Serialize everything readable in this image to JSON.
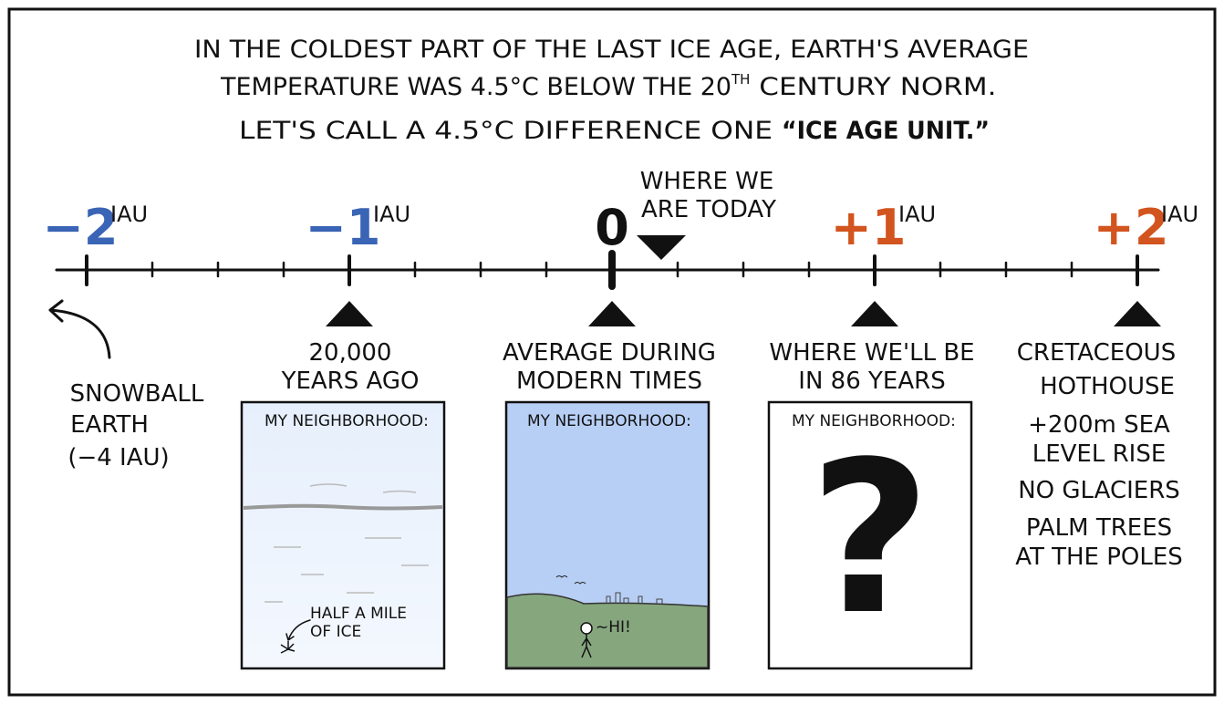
{
  "header": {
    "line1": "IN THE COLDEST PART OF THE LAST ICE AGE, EARTH'S AVERAGE",
    "line2a": "TEMPERATURE WAS 4.5°C BELOW THE 20",
    "line2b": "TH",
    "line2c": " CENTURY NORM.",
    "line3a": "LET'S CALL A 4.5°C DIFFERENCE ONE ",
    "line3b": "“ICE AGE UNIT.”"
  },
  "scale": {
    "labels": [
      {
        "text": "−2",
        "unit": "IAU"
      },
      {
        "text": "−1",
        "unit": "IAU"
      },
      {
        "text": "0"
      },
      {
        "text": "+1",
        "unit": "IAU"
      },
      {
        "text": "+2",
        "unit": "IAU"
      }
    ],
    "today": [
      "WHERE WE",
      "ARE TODAY"
    ]
  },
  "annotations": {
    "snowball": [
      "SNOWBALL",
      "EARTH",
      "(−4 IAU)"
    ],
    "past": [
      "20,000",
      "YEARS AGO"
    ],
    "modern": [
      "AVERAGE DURING",
      "MODERN TIMES"
    ],
    "future": [
      "WHERE WE'LL BE",
      "IN 86 YEARS"
    ],
    "cretaceous": [
      "CRETACEOUS",
      "HOTHOUSE"
    ],
    "notes": [
      "+200m SEA",
      "LEVEL RISE",
      "NO GLACIERS",
      "PALM TREES",
      "AT THE POLES"
    ]
  },
  "panels": [
    {
      "title": "MY NEIGHBORHOOD:",
      "caption": [
        "HALF A MILE",
        "OF ICE"
      ]
    },
    {
      "title": "MY NEIGHBORHOOD:",
      "speech": "~HI!"
    },
    {
      "title": "MY NEIGHBORHOOD:",
      "symbol": "?"
    }
  ]
}
